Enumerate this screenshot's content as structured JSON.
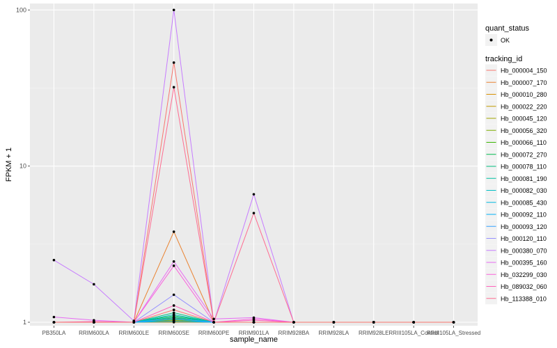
{
  "chart_data": {
    "type": "line",
    "xlabel": "sample_name",
    "ylabel": "FPKM + 1",
    "y_scale": "log10",
    "ylim": [
      0.95,
      110
    ],
    "y_ticks": [
      1,
      10,
      100
    ],
    "y_tick_labels": [
      "1",
      "10",
      "100"
    ],
    "grid": true,
    "legend_position": "right",
    "categories": [
      "PB350LA",
      "RRIM600LA",
      "RRIM600LE",
      "RRIM600SE",
      "RRIM600PE",
      "RRIM901LA",
      "RRIM928BA",
      "RRIM928LA",
      "RRIM928LE",
      "RRIII105LA_Control",
      "RRIII105LA_Stressed"
    ],
    "quant_status": {
      "title": "quant_status",
      "entries": [
        "OK"
      ]
    },
    "tracking_legend_title": "tracking_id",
    "series": [
      {
        "name": "Hb_000004_150",
        "color": "#F8766D",
        "values": [
          1,
          1,
          1,
          1.2,
          1,
          1,
          1,
          1,
          1,
          1,
          1
        ]
      },
      {
        "name": "Hb_000007_170",
        "color": "#EA8331",
        "values": [
          1,
          1,
          1,
          3.8,
          1,
          1,
          1,
          1,
          1,
          1,
          1
        ]
      },
      {
        "name": "Hb_000010_280",
        "color": "#D89000",
        "values": [
          1,
          1,
          1,
          1.0,
          1,
          1,
          1,
          1,
          1,
          1,
          1
        ]
      },
      {
        "name": "Hb_000022_220",
        "color": "#C09B00",
        "values": [
          1,
          1,
          1,
          1.02,
          1,
          1,
          1,
          1,
          1,
          1,
          1
        ]
      },
      {
        "name": "Hb_000045_120",
        "color": "#A3A500",
        "values": [
          1,
          1,
          1,
          1.03,
          1,
          1,
          1,
          1,
          1,
          1,
          1
        ]
      },
      {
        "name": "Hb_000056_320",
        "color": "#7CAE00",
        "values": [
          1,
          1,
          1,
          1.05,
          1,
          1,
          1,
          1,
          1,
          1,
          1
        ]
      },
      {
        "name": "Hb_000066_110",
        "color": "#39B600",
        "values": [
          1,
          1,
          1,
          1.07,
          1,
          1,
          1,
          1,
          1,
          1,
          1
        ]
      },
      {
        "name": "Hb_000072_270",
        "color": "#00BB4E",
        "values": [
          1,
          1,
          1,
          1.1,
          1,
          1,
          1,
          1,
          1,
          1,
          1
        ]
      },
      {
        "name": "Hb_000078_110",
        "color": "#00BF7D",
        "values": [
          1,
          1,
          1,
          1.15,
          1,
          1,
          1,
          1,
          1,
          1,
          1
        ]
      },
      {
        "name": "Hb_000081_190",
        "color": "#00C1A3",
        "values": [
          1,
          1,
          1,
          1.08,
          1,
          1,
          1,
          1,
          1,
          1,
          1
        ]
      },
      {
        "name": "Hb_000082_030",
        "color": "#00BFC4",
        "values": [
          1,
          1,
          1,
          1.12,
          1,
          1,
          1,
          1,
          1,
          1,
          1
        ]
      },
      {
        "name": "Hb_000085_430",
        "color": "#00BAE0",
        "values": [
          1,
          1,
          1,
          1.04,
          1,
          1,
          1,
          1,
          1,
          1,
          1
        ]
      },
      {
        "name": "Hb_000092_110",
        "color": "#00B0F6",
        "values": [
          1,
          1,
          1,
          1.01,
          1,
          1,
          1,
          1,
          1,
          1,
          1
        ]
      },
      {
        "name": "Hb_000093_120",
        "color": "#35A2FF",
        "values": [
          1,
          1,
          1,
          1.06,
          1,
          1,
          1,
          1,
          1,
          1,
          1
        ]
      },
      {
        "name": "Hb_000120_110",
        "color": "#9590FF",
        "values": [
          1,
          1,
          1,
          1.5,
          1,
          1,
          1,
          1,
          1,
          1,
          1
        ]
      },
      {
        "name": "Hb_000380_070",
        "color": "#C77CFF",
        "values": [
          2.5,
          1.75,
          1.02,
          100,
          1.0,
          6.6,
          1,
          1,
          1,
          1,
          1
        ]
      },
      {
        "name": "Hb_000395_160",
        "color": "#E76BF3",
        "values": [
          1.08,
          1.03,
          1.0,
          2.45,
          1.05,
          1.07,
          1,
          1,
          1,
          1,
          1
        ]
      },
      {
        "name": "Hb_032299_030",
        "color": "#FA62DB",
        "values": [
          1,
          1,
          1,
          2.3,
          1.0,
          1.05,
          1,
          1,
          1,
          1,
          1
        ]
      },
      {
        "name": "Hb_089032_060",
        "color": "#FF62BC",
        "values": [
          1,
          1.01,
          1,
          1.28,
          1,
          1.03,
          1,
          1,
          1,
          1,
          1
        ]
      },
      {
        "name": "Hb_113388_010",
        "color": "#FF6C91",
        "values": [
          1,
          1,
          1,
          32,
          1,
          5.0,
          1,
          1,
          1,
          1,
          1
        ]
      },
      {
        "name": "",
        "color": "#F8766D",
        "values": [
          1,
          1,
          1,
          46,
          1,
          1,
          1,
          1,
          1,
          1,
          1
        ]
      }
    ]
  }
}
